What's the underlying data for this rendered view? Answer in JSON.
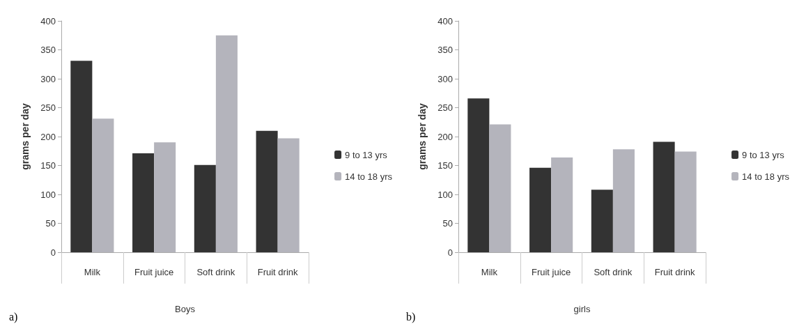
{
  "chart_data": [
    {
      "type": "bar",
      "xlabel": "Boys",
      "ylabel": "grams per day",
      "categories": [
        "Milk",
        "Fruit juice",
        "Soft drink",
        "Fruit drink"
      ],
      "series": [
        {
          "name": "9 to 13 yrs",
          "color": "#333333",
          "values": [
            331,
            171,
            151,
            210
          ]
        },
        {
          "name": "14 to 18 yrs",
          "color": "#b4b4bc",
          "values": [
            231,
            190,
            375,
            197
          ]
        }
      ],
      "ylim": [
        0,
        400
      ],
      "yticks": [
        0,
        50,
        100,
        150,
        200,
        250,
        300,
        350,
        400
      ],
      "grid": false,
      "legend": "right",
      "annotations": [
        "a)"
      ]
    },
    {
      "type": "bar",
      "xlabel": "girls",
      "ylabel": "grams per day",
      "categories": [
        "Milk",
        "Fruit juice",
        "Soft drink",
        "Fruit drink"
      ],
      "series": [
        {
          "name": "9 to 13 yrs",
          "color": "#333333",
          "values": [
            266,
            146,
            108,
            191
          ]
        },
        {
          "name": "14 to 18 yrs",
          "color": "#b4b4bc",
          "values": [
            221,
            164,
            178,
            174
          ]
        }
      ],
      "ylim": [
        0,
        400
      ],
      "yticks": [
        0,
        50,
        100,
        150,
        200,
        250,
        300,
        350,
        400
      ],
      "grid": false,
      "legend": "right",
      "annotations": [
        "b)"
      ]
    }
  ]
}
